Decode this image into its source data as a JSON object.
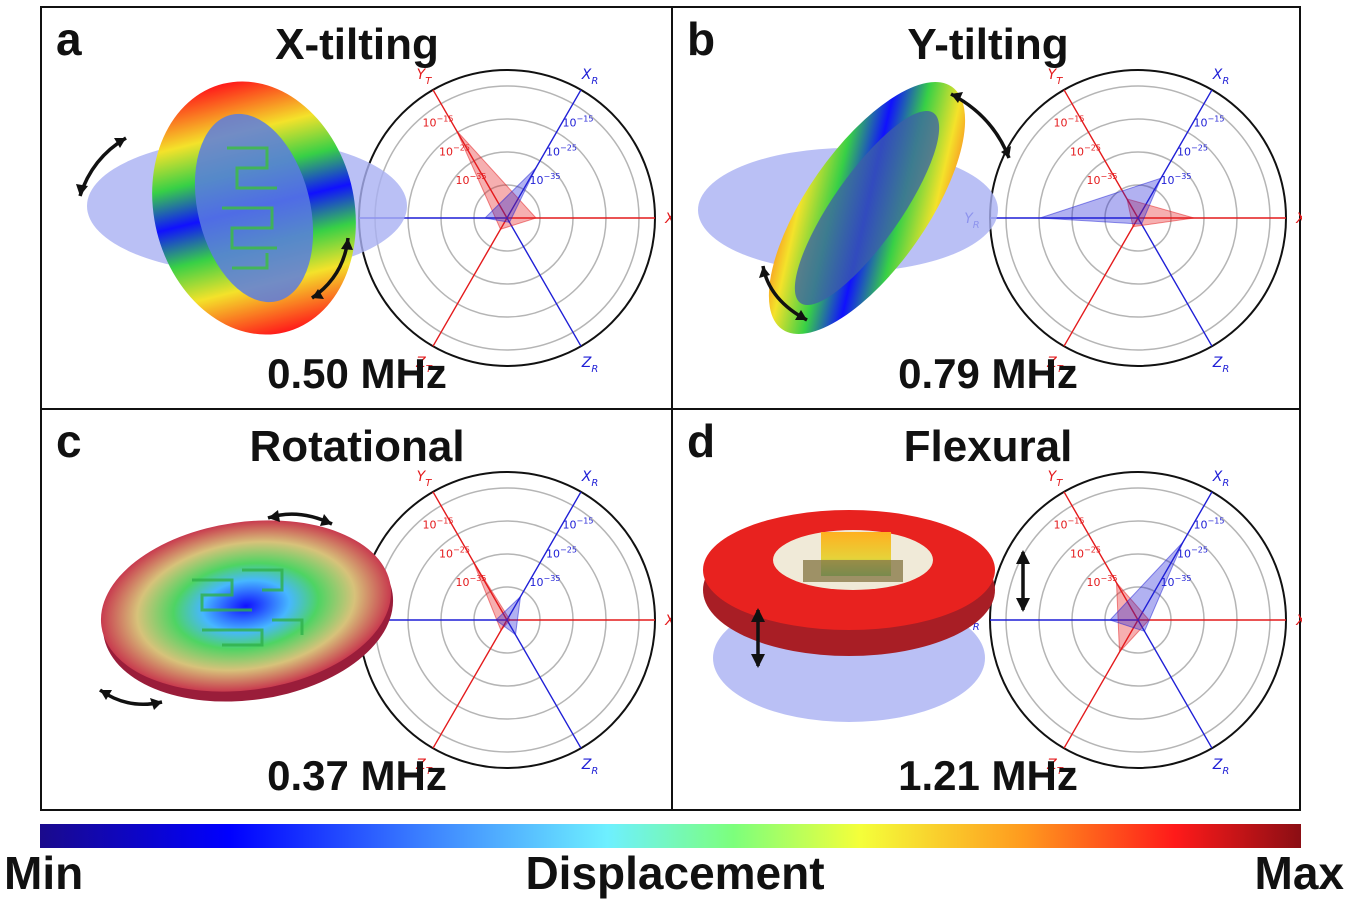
{
  "panels": [
    {
      "label": "a",
      "title": "X-tilting",
      "frequency": "0.50 MHz"
    },
    {
      "label": "b",
      "title": "Y-tilting",
      "frequency": "0.79 MHz"
    },
    {
      "label": "c",
      "title": "Rotational",
      "frequency": "0.37 MHz"
    },
    {
      "label": "d",
      "title": "Flexural",
      "frequency": "1.21 MHz"
    }
  ],
  "radar": {
    "axes": [
      "X_T",
      "Y_T",
      "Z_T",
      "X_R",
      "Y_R",
      "Z_R"
    ],
    "ring_labels": [
      "10^-15",
      "10^-25",
      "10^-35"
    ],
    "translation_color": "#e41a1c",
    "rotation_color": "#1f1fd6"
  },
  "colorbar": {
    "min_label": "Min",
    "title": "Displacement",
    "max_label": "Max"
  },
  "colors": {
    "blue_disk": "#a9b0f2",
    "ring_red": "#e8221f",
    "arrow": "#111111"
  }
}
